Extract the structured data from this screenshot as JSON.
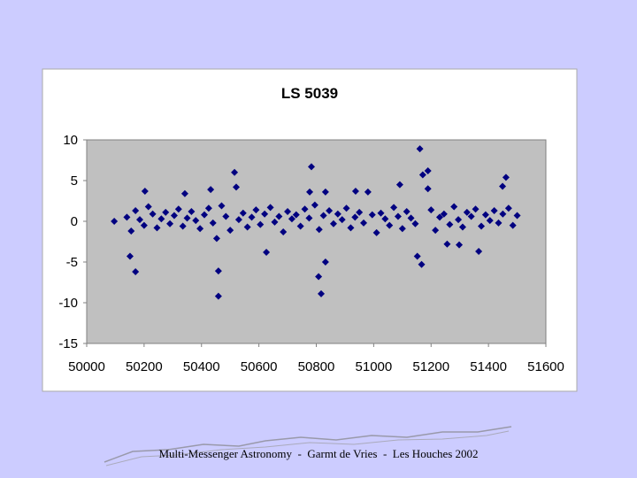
{
  "chart_data": {
    "type": "scatter",
    "title": "LS 5039",
    "color": "#000080",
    "x": [
      50140,
      50155,
      50170,
      50185,
      50200,
      50215,
      50230,
      50245,
      50260,
      50275,
      50290,
      50305,
      50320,
      50335,
      50350,
      50365,
      50380,
      50395,
      50410,
      50425,
      50440,
      50470,
      50485,
      50500,
      50530,
      50545,
      50560,
      50575,
      50590,
      50605,
      50620,
      50640,
      50655,
      50670,
      50685,
      50700,
      50715,
      50730,
      50745,
      50760,
      50775,
      50795,
      50810,
      50825,
      50845,
      50860,
      50875,
      50890,
      50905,
      50920,
      50935,
      50950,
      50965,
      50995,
      51010,
      51025,
      51040,
      51055,
      51070,
      51085,
      51100,
      51115,
      51130,
      51145,
      51200,
      51215,
      51230,
      51245,
      51265,
      51280,
      51295,
      51310,
      51325,
      51340,
      51355,
      51375,
      51390,
      51405,
      51420,
      51435,
      51450,
      51470,
      51485,
      51500,
      50096,
      50151,
      50170,
      50203,
      50342,
      50432,
      50459,
      50459,
      50453,
      50515,
      50521,
      50626,
      50783,
      50777,
      50808,
      50817,
      50832,
      50832,
      50937,
      50980,
      51091,
      51152,
      51161,
      51167,
      51171,
      51189,
      51189,
      51366,
      51461,
      51449,
      51298,
      51256
    ],
    "values": [
      0.5,
      -1.2,
      1.3,
      0.2,
      -0.5,
      1.8,
      0.9,
      -0.8,
      0.3,
      1.1,
      -0.3,
      0.7,
      1.5,
      -0.6,
      0.4,
      1.2,
      0.1,
      -0.9,
      0.8,
      1.6,
      -0.2,
      1.9,
      0.6,
      -1.1,
      0.2,
      1.0,
      -0.7,
      0.5,
      1.4,
      -0.4,
      0.9,
      1.7,
      -0.1,
      0.6,
      -1.3,
      1.2,
      0.3,
      0.8,
      -0.6,
      1.5,
      0.4,
      2.0,
      -1.0,
      0.7,
      1.3,
      -0.3,
      0.9,
      0.2,
      1.6,
      -0.8,
      0.5,
      1.1,
      -0.2,
      0.8,
      -1.4,
      1.0,
      0.3,
      -0.5,
      1.7,
      0.6,
      -0.9,
      1.2,
      0.4,
      -0.3,
      1.4,
      -1.1,
      0.5,
      0.9,
      -0.4,
      1.8,
      0.2,
      -0.7,
      1.1,
      0.6,
      1.5,
      -0.6,
      0.8,
      0.1,
      1.3,
      -0.2,
      0.9,
      1.6,
      -0.5,
      0.7,
      0,
      -4.3,
      -6.2,
      3.7,
      3.4,
      3.9,
      -6.1,
      -9.2,
      -2.1,
      6.0,
      4.2,
      -3.8,
      6.7,
      3.6,
      -6.8,
      -8.9,
      -5.0,
      3.6,
      3.7,
      3.6,
      4.5,
      -4.3,
      8.9,
      -5.3,
      5.7,
      6.2,
      4.0,
      -3.7,
      5.4,
      4.3,
      -2.9,
      -2.8
    ],
    "xlim": [
      50000,
      51600
    ],
    "xticks": [
      50000,
      50200,
      50400,
      50600,
      50800,
      51000,
      51200,
      51400,
      51600
    ],
    "ylim": [
      -15,
      10
    ],
    "yticks": [
      -15,
      -10,
      -5,
      0,
      5,
      10
    ],
    "grid": false
  },
  "footer": "Multi-Messenger Astronomy  -  Garmt de Vries  -  Les Houches 2002"
}
